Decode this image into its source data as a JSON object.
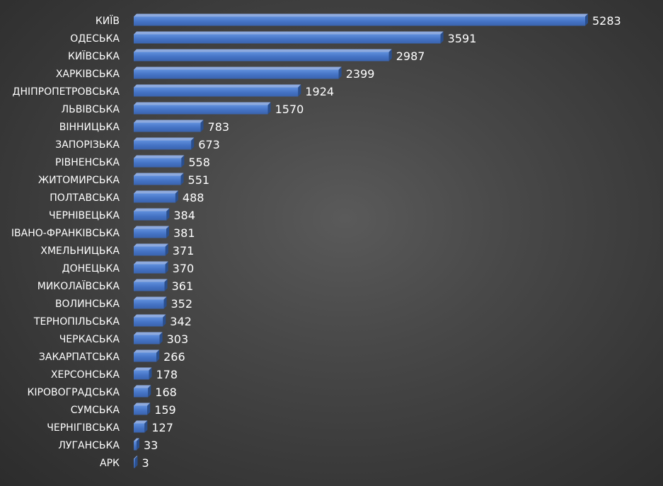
{
  "chart_data": {
    "type": "bar",
    "orientation": "horizontal",
    "categories": [
      "КИЇВ",
      "ОДЕСЬКА",
      "КИЇВСЬКА",
      "ХАРКІВСЬКА",
      "ДНІПРОПЕТРОВСЬКА",
      "ЛЬВІВСЬКА",
      "ВІННИЦЬКА",
      "ЗАПОРІЗЬКА",
      "РІВНЕНСЬКА",
      "ЖИТОМИРСЬКА",
      "ПОЛТАВСЬКА",
      "ЧЕРНІВЕЦЬКА",
      "ІВАНО-ФРАНКІВСЬКА",
      "ХМЕЛЬНИЦЬКА",
      "ДОНЕЦЬКА",
      "МИКОЛАЇВСЬКА",
      "ВОЛИНСЬКА",
      "ТЕРНОПІЛЬСЬКА",
      "ЧЕРКАСЬКА",
      "ЗАКАРПАТСЬКА",
      "ХЕРСОНСЬКА",
      "КІРОВОГРАДСЬКА",
      "СУМСЬКА",
      "ЧЕРНІГІВСЬКА",
      "ЛУГАНСЬКА",
      "АРК"
    ],
    "values": [
      5283,
      3591,
      2987,
      2399,
      1924,
      1570,
      783,
      673,
      558,
      551,
      488,
      384,
      381,
      371,
      370,
      361,
      352,
      342,
      303,
      266,
      178,
      168,
      159,
      127,
      33,
      3
    ],
    "title": "",
    "xlabel": "",
    "ylabel": "",
    "xlim": [
      0,
      5283
    ],
    "grid": false,
    "legend": "none",
    "data_labels": true,
    "colors": {
      "bar_front": "#4472c4",
      "bar_front_light": "#5a8ad8",
      "bar_top": "#8eaade",
      "bar_side": "#2a4f8e",
      "text": "#ffffff",
      "background": "#474747"
    }
  }
}
